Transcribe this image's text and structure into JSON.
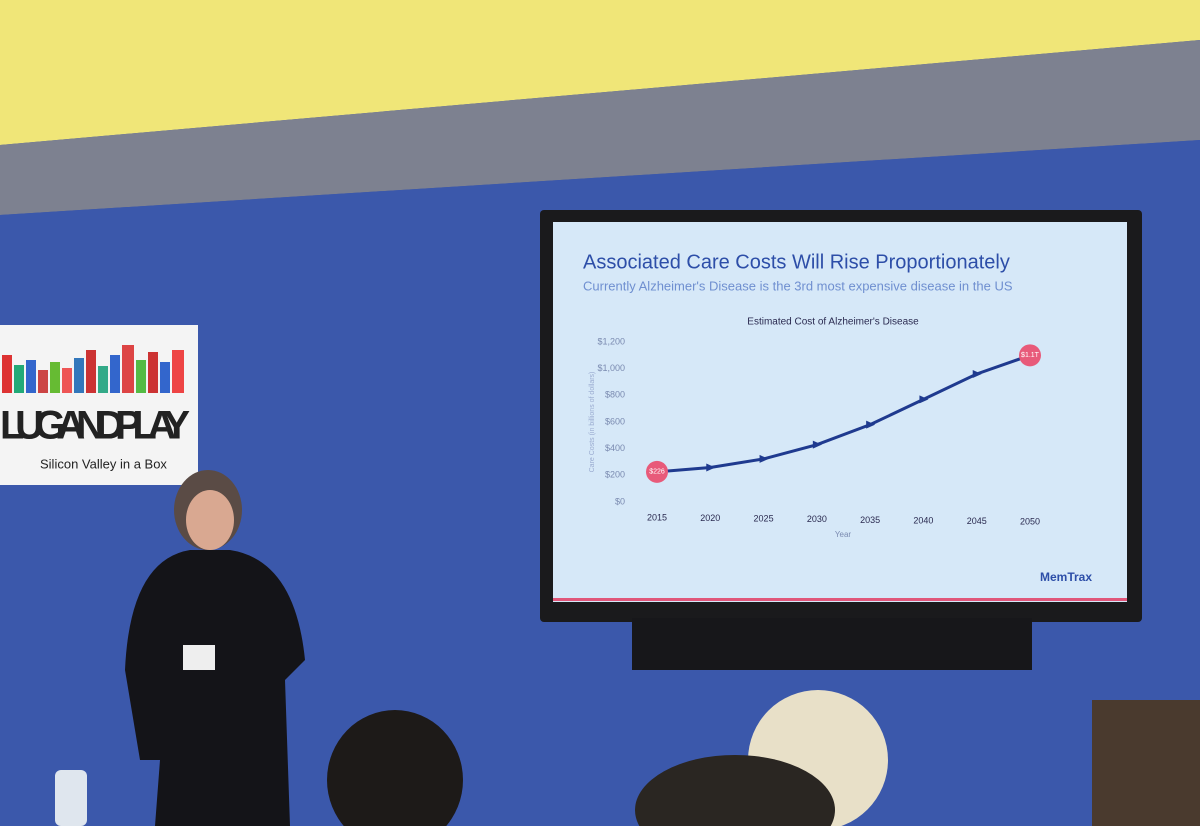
{
  "banner": {
    "logo": "LUGANDPLAY",
    "tagline": "Silicon Valley in a Box"
  },
  "slide": {
    "title": "Associated Care Costs Will Rise Proportionately",
    "subtitle": "Currently Alzheimer's Disease is the 3rd most expensive disease in the US",
    "brand": "MemTrax"
  },
  "chart_data": {
    "type": "line",
    "title": "Estimated Cost of Alzheimer's Disease",
    "x_label": "Year",
    "y_label": "Care Costs (in billions of dollars)",
    "categories": [
      "2015",
      "2020",
      "2025",
      "2030",
      "2035",
      "2040",
      "2045",
      "2050"
    ],
    "values": [
      226,
      259,
      323,
      430,
      580,
      770,
      960,
      1100
    ],
    "value_labels": [
      "$226",
      null,
      null,
      null,
      null,
      null,
      null,
      "$1.1T"
    ],
    "color": "#1f3a8f",
    "ylim": [
      0,
      1200
    ],
    "yticks": [
      {
        "value": 0,
        "label": "$0"
      },
      {
        "value": 200,
        "label": "$200"
      },
      {
        "value": 400,
        "label": "$400"
      },
      {
        "value": 600,
        "label": "$600"
      },
      {
        "value": 800,
        "label": "$800"
      },
      {
        "value": 1000,
        "label": "$1,000"
      },
      {
        "value": 1200,
        "label": "$1,200"
      }
    ],
    "grid": false
  }
}
